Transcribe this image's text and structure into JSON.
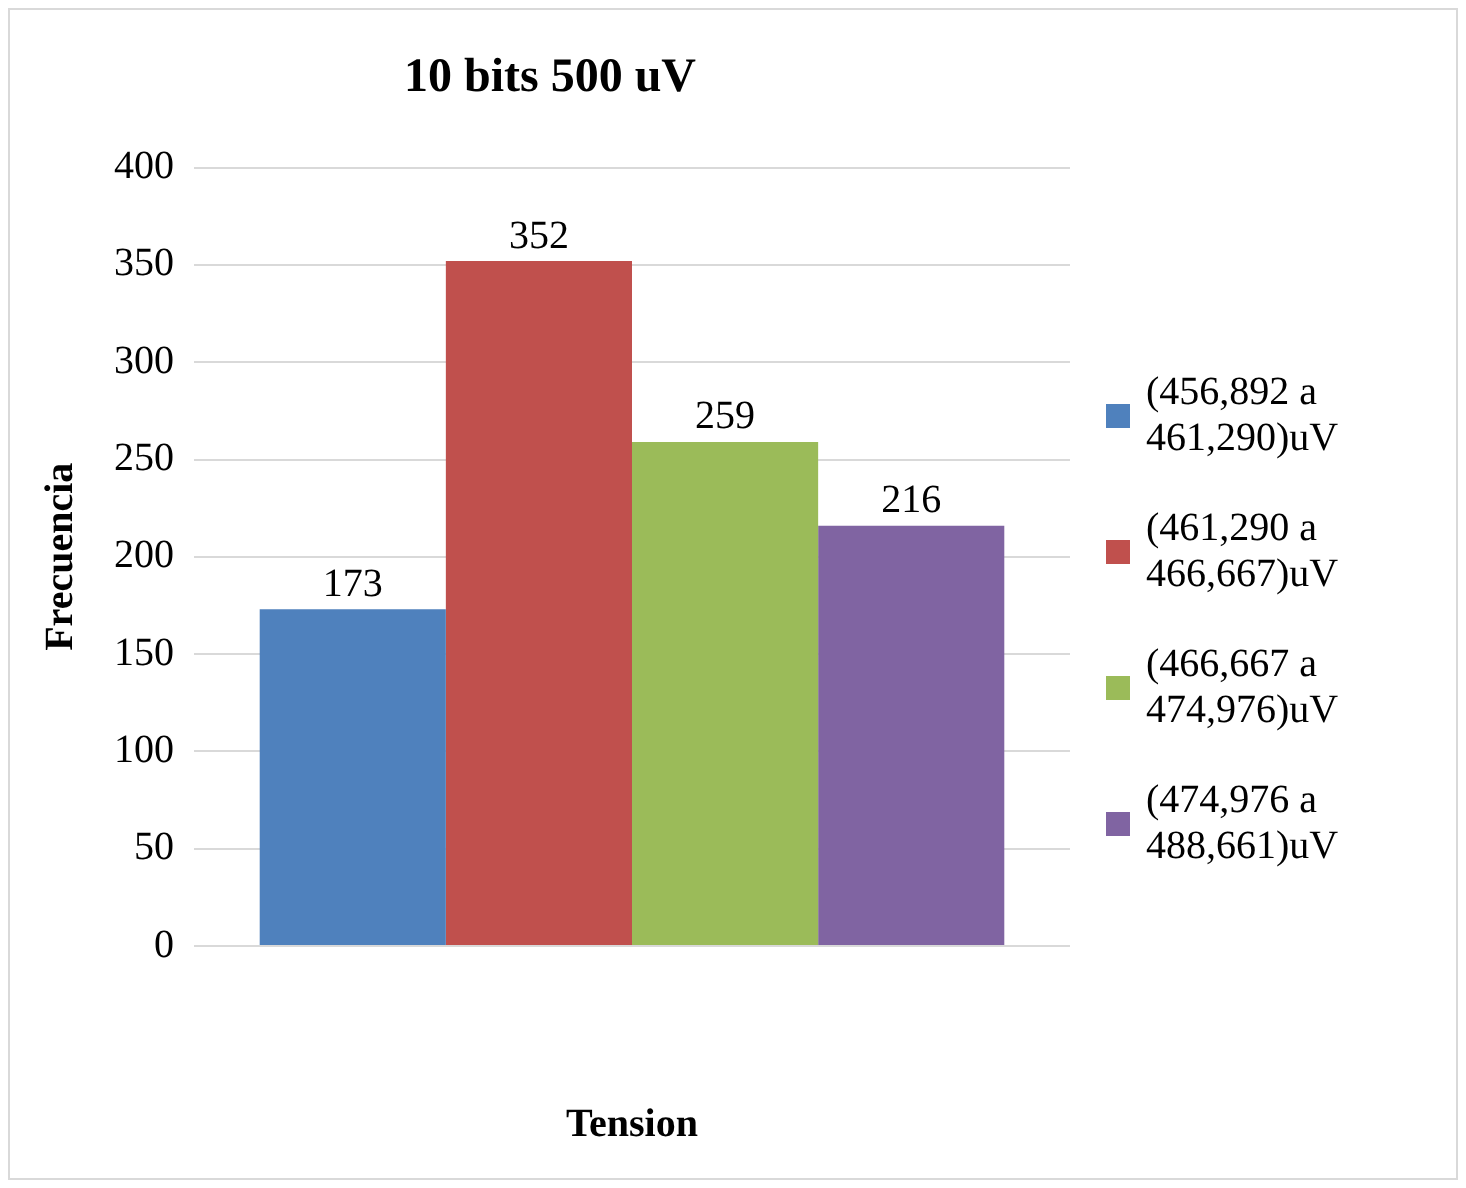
{
  "chart_data": {
    "type": "bar",
    "title": "10 bits 500 uV",
    "xlabel": "Tension",
    "ylabel": "Frecuencia",
    "categories": [
      null
    ],
    "series": [
      {
        "name": "(456,892 a 461,290)uV",
        "color": "#4f81bd",
        "values": [
          173
        ]
      },
      {
        "name": "(461,290 a 466,667)uV",
        "color": "#c0504d",
        "values": [
          352
        ]
      },
      {
        "name": "(466,667 a 474,976)uV",
        "color": "#9bbb59",
        "values": [
          259
        ]
      },
      {
        "name": "(474,976 a 488,661)uV",
        "color": "#8064a2",
        "values": [
          216
        ]
      }
    ],
    "ylim": [
      0,
      400
    ],
    "yticks": [
      0,
      50,
      100,
      150,
      200,
      250,
      300,
      350,
      400
    ],
    "grid": "y",
    "legend": "right",
    "data_labels": true
  }
}
